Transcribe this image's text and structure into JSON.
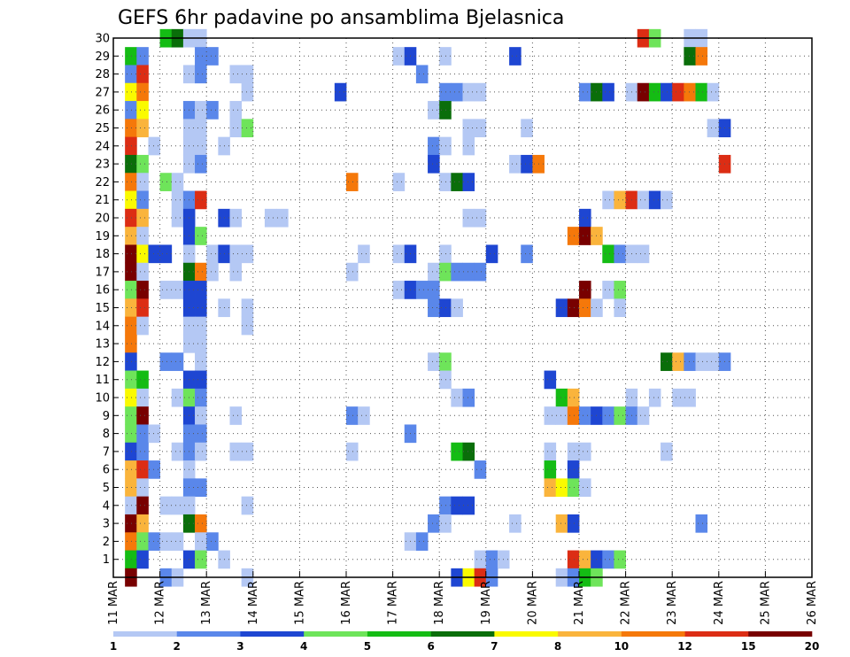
{
  "chart_data": {
    "type": "heatmap",
    "title": "GEFS 6hr padavine po ansamblima Bjelasnica",
    "xlabel": "",
    "ylabel": "",
    "x_tick_labels": [
      "11 MAR",
      "12 MAR",
      "13 MAR",
      "14 MAR",
      "15 MAR",
      "16 MAR",
      "17 MAR",
      "18 MAR",
      "19 MAR",
      "20 MAR",
      "21 MAR",
      "22 MAR",
      "23 MAR",
      "24 MAR",
      "25 MAR",
      "26 MAR"
    ],
    "y_tick_labels": [
      "1",
      "2",
      "3",
      "4",
      "5",
      "6",
      "7",
      "8",
      "9",
      "10",
      "11",
      "12",
      "13",
      "14",
      "15",
      "16",
      "17",
      "18",
      "19",
      "20",
      "21",
      "22",
      "23",
      "24",
      "25",
      "26",
      "27",
      "28",
      "29",
      "30"
    ],
    "x_range_days": [
      0,
      15
    ],
    "y_range_members": [
      0,
      30
    ],
    "steps_per_day": 4,
    "grid": true,
    "colorbar": {
      "placement": "bottom",
      "labels": [
        "1",
        "2",
        "3",
        "4",
        "5",
        "6",
        "7",
        "8",
        "10",
        "12",
        "15",
        "20"
      ],
      "colors": [
        "#b4c8f4",
        "#5a87ea",
        "#1e46d2",
        "#6ee45a",
        "#14bc14",
        "#0a6e0a",
        "#fafa00",
        "#fab43c",
        "#f5780a",
        "#dc2d14",
        "#780000"
      ]
    },
    "cells": [
      [
        4,
        30,
        5
      ],
      [
        5,
        30,
        6
      ],
      [
        6,
        30,
        1
      ],
      [
        7,
        30,
        1
      ],
      [
        45,
        30,
        10
      ],
      [
        46,
        30,
        4
      ],
      [
        49,
        30,
        1
      ],
      [
        50,
        30,
        1
      ],
      [
        1,
        29,
        5
      ],
      [
        2,
        29,
        2
      ],
      [
        7,
        29,
        2
      ],
      [
        8,
        29,
        2
      ],
      [
        24,
        29,
        1
      ],
      [
        25,
        29,
        3
      ],
      [
        28,
        29,
        1
      ],
      [
        34,
        29,
        3
      ],
      [
        49,
        29,
        6
      ],
      [
        50,
        29,
        9
      ],
      [
        1,
        28,
        2
      ],
      [
        2,
        28,
        10
      ],
      [
        6,
        28,
        1
      ],
      [
        7,
        28,
        2
      ],
      [
        10,
        28,
        1
      ],
      [
        11,
        28,
        1
      ],
      [
        26,
        28,
        2
      ],
      [
        1,
        27,
        7
      ],
      [
        2,
        27,
        9
      ],
      [
        11,
        27,
        1
      ],
      [
        19,
        27,
        3
      ],
      [
        28,
        27,
        2
      ],
      [
        29,
        27,
        2
      ],
      [
        30,
        27,
        1
      ],
      [
        31,
        27,
        1
      ],
      [
        40,
        27,
        2
      ],
      [
        41,
        27,
        6
      ],
      [
        42,
        27,
        3
      ],
      [
        44,
        27,
        1
      ],
      [
        45,
        27,
        11
      ],
      [
        46,
        27,
        5
      ],
      [
        47,
        27,
        3
      ],
      [
        48,
        27,
        10
      ],
      [
        49,
        27,
        9
      ],
      [
        50,
        27,
        5
      ],
      [
        51,
        27,
        1
      ],
      [
        1,
        26,
        2
      ],
      [
        2,
        26,
        7
      ],
      [
        6,
        26,
        2
      ],
      [
        7,
        26,
        1
      ],
      [
        8,
        26,
        2
      ],
      [
        10,
        26,
        1
      ],
      [
        27,
        26,
        1
      ],
      [
        28,
        26,
        6
      ],
      [
        1,
        25,
        9
      ],
      [
        2,
        25,
        8
      ],
      [
        6,
        25,
        1
      ],
      [
        7,
        25,
        1
      ],
      [
        10,
        25,
        1
      ],
      [
        11,
        25,
        4
      ],
      [
        30,
        25,
        1
      ],
      [
        31,
        25,
        1
      ],
      [
        35,
        25,
        1
      ],
      [
        51,
        25,
        1
      ],
      [
        52,
        25,
        3
      ],
      [
        1,
        24,
        10
      ],
      [
        3,
        24,
        1
      ],
      [
        6,
        24,
        1
      ],
      [
        7,
        24,
        1
      ],
      [
        9,
        24,
        1
      ],
      [
        27,
        24,
        2
      ],
      [
        28,
        24,
        1
      ],
      [
        30,
        24,
        1
      ],
      [
        1,
        23,
        6
      ],
      [
        2,
        23,
        4
      ],
      [
        6,
        23,
        1
      ],
      [
        7,
        23,
        2
      ],
      [
        27,
        23,
        3
      ],
      [
        34,
        23,
        1
      ],
      [
        35,
        23,
        3
      ],
      [
        36,
        23,
        9
      ],
      [
        52,
        23,
        10
      ],
      [
        1,
        22,
        9
      ],
      [
        2,
        22,
        1
      ],
      [
        4,
        22,
        4
      ],
      [
        5,
        22,
        1
      ],
      [
        20,
        22,
        9
      ],
      [
        24,
        22,
        1
      ],
      [
        28,
        22,
        1
      ],
      [
        29,
        22,
        6
      ],
      [
        30,
        22,
        3
      ],
      [
        1,
        21,
        7
      ],
      [
        2,
        21,
        2
      ],
      [
        5,
        21,
        1
      ],
      [
        6,
        21,
        2
      ],
      [
        7,
        21,
        10
      ],
      [
        42,
        21,
        1
      ],
      [
        43,
        21,
        8
      ],
      [
        44,
        21,
        10
      ],
      [
        45,
        21,
        1
      ],
      [
        46,
        21,
        3
      ],
      [
        47,
        21,
        1
      ],
      [
        1,
        20,
        10
      ],
      [
        2,
        20,
        8
      ],
      [
        5,
        20,
        1
      ],
      [
        6,
        20,
        3
      ],
      [
        9,
        20,
        3
      ],
      [
        10,
        20,
        1
      ],
      [
        13,
        20,
        1
      ],
      [
        14,
        20,
        1
      ],
      [
        30,
        20,
        1
      ],
      [
        31,
        20,
        1
      ],
      [
        40,
        20,
        3
      ],
      [
        1,
        19,
        8
      ],
      [
        2,
        19,
        1
      ],
      [
        6,
        19,
        3
      ],
      [
        7,
        19,
        4
      ],
      [
        39,
        19,
        9
      ],
      [
        40,
        19,
        11
      ],
      [
        41,
        19,
        8
      ],
      [
        1,
        18,
        11
      ],
      [
        2,
        18,
        7
      ],
      [
        3,
        18,
        3
      ],
      [
        4,
        18,
        3
      ],
      [
        6,
        18,
        1
      ],
      [
        8,
        18,
        1
      ],
      [
        9,
        18,
        3
      ],
      [
        10,
        18,
        1
      ],
      [
        11,
        18,
        1
      ],
      [
        21,
        18,
        1
      ],
      [
        24,
        18,
        1
      ],
      [
        25,
        18,
        3
      ],
      [
        28,
        18,
        1
      ],
      [
        32,
        18,
        3
      ],
      [
        35,
        18,
        2
      ],
      [
        42,
        18,
        5
      ],
      [
        43,
        18,
        2
      ],
      [
        44,
        18,
        1
      ],
      [
        45,
        18,
        1
      ],
      [
        1,
        17,
        11
      ],
      [
        2,
        17,
        1
      ],
      [
        6,
        17,
        6
      ],
      [
        7,
        17,
        9
      ],
      [
        8,
        17,
        1
      ],
      [
        10,
        17,
        1
      ],
      [
        20,
        17,
        1
      ],
      [
        27,
        17,
        1
      ],
      [
        28,
        17,
        4
      ],
      [
        29,
        17,
        2
      ],
      [
        30,
        17,
        2
      ],
      [
        31,
        17,
        2
      ],
      [
        1,
        16,
        4
      ],
      [
        2,
        16,
        11
      ],
      [
        4,
        16,
        1
      ],
      [
        5,
        16,
        1
      ],
      [
        6,
        16,
        3
      ],
      [
        7,
        16,
        3
      ],
      [
        24,
        16,
        1
      ],
      [
        25,
        16,
        3
      ],
      [
        26,
        16,
        2
      ],
      [
        27,
        16,
        2
      ],
      [
        40,
        16,
        11
      ],
      [
        42,
        16,
        1
      ],
      [
        43,
        16,
        4
      ],
      [
        1,
        15,
        8
      ],
      [
        2,
        15,
        10
      ],
      [
        6,
        15,
        3
      ],
      [
        7,
        15,
        3
      ],
      [
        9,
        15,
        1
      ],
      [
        11,
        15,
        1
      ],
      [
        27,
        15,
        2
      ],
      [
        28,
        15,
        3
      ],
      [
        29,
        15,
        1
      ],
      [
        38,
        15,
        3
      ],
      [
        39,
        15,
        11
      ],
      [
        40,
        15,
        9
      ],
      [
        41,
        15,
        1
      ],
      [
        43,
        15,
        1
      ],
      [
        1,
        14,
        9
      ],
      [
        2,
        14,
        1
      ],
      [
        6,
        14,
        1
      ],
      [
        7,
        14,
        1
      ],
      [
        11,
        14,
        1
      ],
      [
        1,
        13,
        9
      ],
      [
        6,
        13,
        1
      ],
      [
        7,
        13,
        1
      ],
      [
        1,
        12,
        3
      ],
      [
        4,
        12,
        2
      ],
      [
        5,
        12,
        2
      ],
      [
        7,
        12,
        1
      ],
      [
        27,
        12,
        1
      ],
      [
        28,
        12,
        4
      ],
      [
        47,
        12,
        6
      ],
      [
        48,
        12,
        8
      ],
      [
        49,
        12,
        2
      ],
      [
        50,
        12,
        1
      ],
      [
        51,
        12,
        1
      ],
      [
        52,
        12,
        2
      ],
      [
        1,
        11,
        4
      ],
      [
        2,
        11,
        5
      ],
      [
        6,
        11,
        3
      ],
      [
        7,
        11,
        3
      ],
      [
        28,
        11,
        1
      ],
      [
        37,
        11,
        3
      ],
      [
        1,
        10,
        7
      ],
      [
        2,
        10,
        1
      ],
      [
        5,
        10,
        1
      ],
      [
        6,
        10,
        4
      ],
      [
        7,
        10,
        2
      ],
      [
        29,
        10,
        1
      ],
      [
        30,
        10,
        2
      ],
      [
        38,
        10,
        5
      ],
      [
        39,
        10,
        8
      ],
      [
        44,
        10,
        1
      ],
      [
        46,
        10,
        1
      ],
      [
        48,
        10,
        1
      ],
      [
        49,
        10,
        1
      ],
      [
        1,
        9,
        4
      ],
      [
        2,
        9,
        11
      ],
      [
        6,
        9,
        3
      ],
      [
        7,
        9,
        1
      ],
      [
        10,
        9,
        1
      ],
      [
        20,
        9,
        2
      ],
      [
        21,
        9,
        1
      ],
      [
        37,
        9,
        1
      ],
      [
        38,
        9,
        1
      ],
      [
        39,
        9,
        9
      ],
      [
        40,
        9,
        2
      ],
      [
        41,
        9,
        3
      ],
      [
        42,
        9,
        2
      ],
      [
        43,
        9,
        4
      ],
      [
        44,
        9,
        2
      ],
      [
        45,
        9,
        1
      ],
      [
        1,
        8,
        4
      ],
      [
        2,
        8,
        2
      ],
      [
        3,
        8,
        1
      ],
      [
        6,
        8,
        2
      ],
      [
        7,
        8,
        2
      ],
      [
        25,
        8,
        2
      ],
      [
        1,
        7,
        3
      ],
      [
        2,
        7,
        2
      ],
      [
        5,
        7,
        1
      ],
      [
        6,
        7,
        2
      ],
      [
        7,
        7,
        1
      ],
      [
        10,
        7,
        1
      ],
      [
        11,
        7,
        1
      ],
      [
        20,
        7,
        1
      ],
      [
        29,
        7,
        5
      ],
      [
        30,
        7,
        6
      ],
      [
        37,
        7,
        1
      ],
      [
        39,
        7,
        1
      ],
      [
        40,
        7,
        1
      ],
      [
        47,
        7,
        1
      ],
      [
        1,
        6,
        8
      ],
      [
        2,
        6,
        10
      ],
      [
        3,
        6,
        2
      ],
      [
        6,
        6,
        1
      ],
      [
        31,
        6,
        2
      ],
      [
        37,
        6,
        5
      ],
      [
        39,
        6,
        3
      ],
      [
        1,
        5,
        8
      ],
      [
        2,
        5,
        1
      ],
      [
        6,
        5,
        2
      ],
      [
        7,
        5,
        2
      ],
      [
        37,
        5,
        8
      ],
      [
        38,
        5,
        7
      ],
      [
        39,
        5,
        4
      ],
      [
        40,
        5,
        1
      ],
      [
        1,
        4,
        1
      ],
      [
        2,
        4,
        11
      ],
      [
        4,
        4,
        1
      ],
      [
        5,
        4,
        1
      ],
      [
        6,
        4,
        1
      ],
      [
        11,
        4,
        1
      ],
      [
        28,
        4,
        2
      ],
      [
        29,
        4,
        3
      ],
      [
        30,
        4,
        3
      ],
      [
        1,
        3,
        11
      ],
      [
        2,
        3,
        8
      ],
      [
        6,
        3,
        6
      ],
      [
        7,
        3,
        9
      ],
      [
        27,
        3,
        2
      ],
      [
        28,
        3,
        1
      ],
      [
        34,
        3,
        1
      ],
      [
        38,
        3,
        8
      ],
      [
        39,
        3,
        3
      ],
      [
        50,
        3,
        2
      ],
      [
        1,
        2,
        9
      ],
      [
        2,
        2,
        4
      ],
      [
        3,
        2,
        2
      ],
      [
        4,
        2,
        1
      ],
      [
        5,
        2,
        1
      ],
      [
        7,
        2,
        1
      ],
      [
        8,
        2,
        2
      ],
      [
        25,
        2,
        1
      ],
      [
        26,
        2,
        2
      ],
      [
        1,
        1,
        5
      ],
      [
        2,
        1,
        3
      ],
      [
        6,
        1,
        3
      ],
      [
        7,
        1,
        4
      ],
      [
        9,
        1,
        1
      ],
      [
        31,
        1,
        1
      ],
      [
        32,
        1,
        2
      ],
      [
        33,
        1,
        1
      ],
      [
        39,
        1,
        10
      ],
      [
        40,
        1,
        8
      ],
      [
        41,
        1,
        3
      ],
      [
        42,
        1,
        2
      ],
      [
        43,
        1,
        4
      ],
      [
        1,
        0,
        11
      ],
      [
        4,
        0,
        2
      ],
      [
        5,
        0,
        1
      ],
      [
        11,
        0,
        1
      ],
      [
        29,
        0,
        3
      ],
      [
        30,
        0,
        7
      ],
      [
        31,
        0,
        10
      ],
      [
        32,
        0,
        2
      ],
      [
        38,
        0,
        1
      ],
      [
        39,
        0,
        2
      ],
      [
        40,
        0,
        5
      ],
      [
        41,
        0,
        4
      ]
    ]
  }
}
